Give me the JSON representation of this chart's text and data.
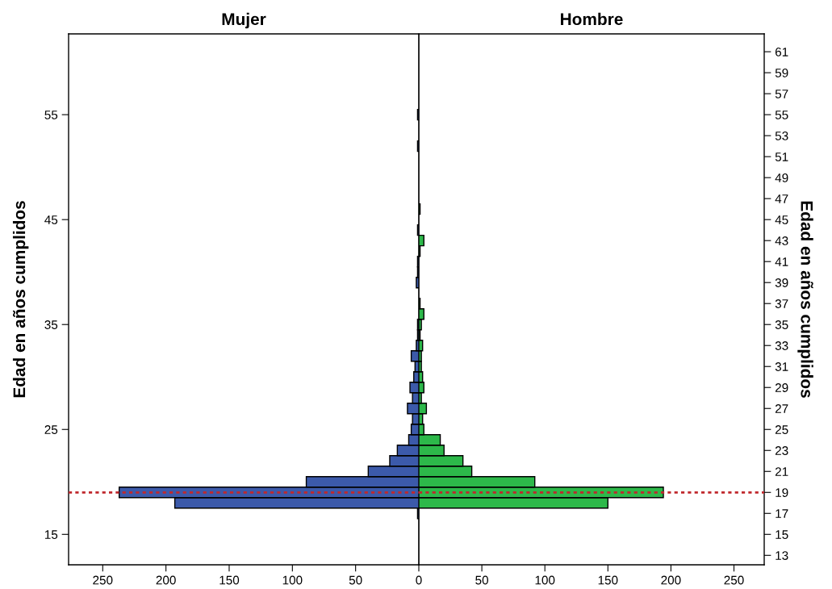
{
  "chart_data": [
    {
      "type": "bar",
      "orientation": "horizontal",
      "title": "Mujer",
      "ylabel": "Edad en años cumplidos",
      "x": [
        17,
        18,
        19,
        20,
        21,
        22,
        23,
        24,
        25,
        26,
        27,
        28,
        29,
        30,
        31,
        32,
        33,
        34,
        35,
        36,
        37,
        38,
        39,
        40,
        41,
        42,
        43,
        44,
        45,
        46,
        47,
        48,
        49,
        50,
        51,
        52,
        53,
        54,
        55
      ],
      "series": [
        {
          "color": "#3c5aaa",
          "values": [
            1,
            193,
            237,
            89,
            40,
            23,
            17,
            8,
            6,
            5,
            9,
            5,
            7,
            4,
            3,
            6,
            2,
            1,
            1,
            null,
            null,
            null,
            2,
            1,
            1,
            null,
            null,
            1,
            null,
            null,
            null,
            null,
            null,
            null,
            null,
            1,
            null,
            null,
            1
          ]
        }
      ],
      "xlim": [
        277,
        0
      ],
      "xticks": [
        0,
        50,
        100,
        150,
        200,
        250
      ],
      "ylim": [
        12.1,
        62.7
      ],
      "yticks": [
        15,
        25,
        35,
        45,
        55
      ],
      "ref_lines": [
        {
          "axis": "y",
          "value": 19,
          "color": "#c0282d",
          "line_style": "dotted"
        }
      ],
      "grid": false,
      "legend": false
    },
    {
      "type": "bar",
      "orientation": "horizontal",
      "title": "Hombre",
      "ylabel": "Edad en años cumplidos",
      "x": [
        18,
        19,
        20,
        21,
        22,
        23,
        24,
        25,
        26,
        27,
        28,
        29,
        30,
        31,
        32,
        33,
        34,
        35,
        36,
        37,
        38,
        39,
        40,
        41,
        42,
        43,
        44,
        45,
        46
      ],
      "series": [
        {
          "color": "#2db84a",
          "values": [
            150,
            194,
            92,
            42,
            35,
            20,
            17,
            4,
            3,
            6,
            2,
            4,
            3,
            2,
            2,
            3,
            1,
            2,
            4,
            1,
            null,
            null,
            null,
            null,
            1,
            4,
            null,
            null,
            1
          ]
        }
      ],
      "xlim": [
        0,
        274
      ],
      "xticks": [
        50,
        100,
        150,
        200,
        250
      ],
      "ylim": [
        12.1,
        62.7
      ],
      "yticks": [
        13,
        15,
        17,
        19,
        21,
        23,
        25,
        27,
        29,
        31,
        33,
        35,
        37,
        39,
        41,
        43,
        45,
        47,
        49,
        51,
        53,
        55,
        57,
        59,
        61
      ],
      "ref_lines": [
        {
          "axis": "y",
          "value": 19,
          "color": "#c0282d",
          "line_style": "dotted"
        }
      ],
      "grid": false,
      "legend": false
    }
  ]
}
